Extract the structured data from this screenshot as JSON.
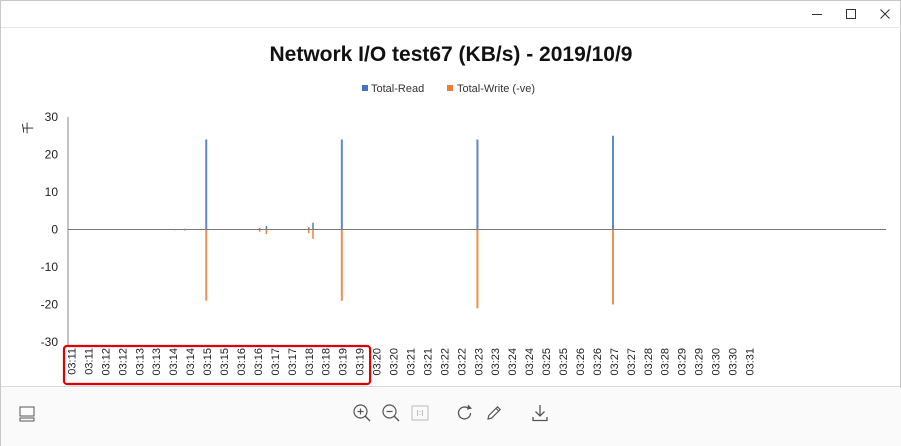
{
  "window": {
    "controls": [
      "minimize-icon",
      "maximize-icon",
      "close-icon"
    ]
  },
  "chart_data": {
    "type": "bar",
    "title": "Network I/O test67 (KB/s) - 2019/10/9",
    "y_unit_label": "千",
    "ylim": [
      -30,
      30
    ],
    "yticks": [
      30,
      20,
      10,
      0,
      -10,
      -20,
      -30
    ],
    "grid": false,
    "legend_position": "top",
    "categories": [
      "03:11",
      "03:11",
      "03:12",
      "03:12",
      "03:13",
      "03:13",
      "03:14",
      "03:14",
      "03:15",
      "03:15",
      "03:16",
      "03:16",
      "03:17",
      "03:17",
      "03:18",
      "03:18",
      "03:19",
      "03:19",
      "03:20",
      "03:20",
      "03:21",
      "03:21",
      "03:22",
      "03:22",
      "03:23",
      "03:23",
      "03:24",
      "03:24",
      "03:25",
      "03:25",
      "03:26",
      "03:26",
      "03:27",
      "03:27",
      "03:28",
      "03:28",
      "03:29",
      "03:29",
      "03:30",
      "03:30",
      "03:31"
    ],
    "series": [
      {
        "name": "Total-Read",
        "color": "#4472c4",
        "points": [
          {
            "x": 6.6,
            "y": 0.1
          },
          {
            "x": 7.2,
            "y": 0.2
          },
          {
            "x": 8.45,
            "y": 24
          },
          {
            "x": 11.6,
            "y": 0.4
          },
          {
            "x": 12.0,
            "y": 0.9
          },
          {
            "x": 14.5,
            "y": 0.6
          },
          {
            "x": 14.75,
            "y": 1.8
          },
          {
            "x": 16.45,
            "y": 24
          },
          {
            "x": 24.45,
            "y": 24
          },
          {
            "x": 32.45,
            "y": 25
          }
        ]
      },
      {
        "name": "Total-Write (-ve)",
        "color": "#ed7d31",
        "points": [
          {
            "x": 6.6,
            "y": -0.1
          },
          {
            "x": 7.2,
            "y": -0.3
          },
          {
            "x": 8.45,
            "y": -19
          },
          {
            "x": 11.6,
            "y": -0.6
          },
          {
            "x": 12.0,
            "y": -1.2
          },
          {
            "x": 14.5,
            "y": -1.0
          },
          {
            "x": 14.75,
            "y": -2.5
          },
          {
            "x": 16.45,
            "y": -19
          },
          {
            "x": 24.45,
            "y": -21
          },
          {
            "x": 32.45,
            "y": -20
          }
        ]
      }
    ],
    "highlight": {
      "from_index": 0,
      "to_index": 17,
      "color": "#e00000"
    }
  },
  "toolbar": {
    "left": [
      {
        "icon": "layout-icon"
      }
    ],
    "center": [
      {
        "icon": "zoom-in-icon"
      },
      {
        "icon": "zoom-out-icon"
      },
      {
        "icon": "actual-size-icon"
      },
      {
        "icon": "rotate-icon"
      },
      {
        "icon": "edit-icon"
      },
      {
        "icon": "download-icon"
      }
    ]
  }
}
